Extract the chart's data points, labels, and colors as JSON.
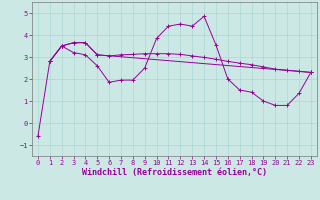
{
  "xlabel": "Windchill (Refroidissement éolien,°C)",
  "background_color": "#cce8e4",
  "line_color": "#990099",
  "xlim": [
    -0.5,
    23.5
  ],
  "ylim": [
    -1.5,
    5.5
  ],
  "yticks": [
    -1,
    0,
    1,
    2,
    3,
    4,
    5
  ],
  "xticks": [
    0,
    1,
    2,
    3,
    4,
    5,
    6,
    7,
    8,
    9,
    10,
    11,
    12,
    13,
    14,
    15,
    16,
    17,
    18,
    19,
    20,
    21,
    22,
    23
  ],
  "line1_x": [
    0,
    1,
    2,
    3,
    4,
    5,
    6,
    7,
    8,
    9,
    10,
    11,
    12,
    13,
    14,
    15,
    16,
    17,
    18,
    19,
    20,
    21,
    22,
    23
  ],
  "line1_y": [
    -0.6,
    2.8,
    3.5,
    3.2,
    3.1,
    2.6,
    1.85,
    1.95,
    1.95,
    2.5,
    3.85,
    4.4,
    4.5,
    4.4,
    4.85,
    3.55,
    2.0,
    1.5,
    1.4,
    1.0,
    0.8,
    0.8,
    1.35,
    2.3
  ],
  "line2_x": [
    1,
    2,
    3,
    4,
    5,
    6,
    7,
    8,
    9,
    10,
    11,
    12,
    13,
    14,
    15,
    16,
    17,
    18,
    19,
    20,
    21,
    22,
    23
  ],
  "line2_y": [
    2.8,
    3.5,
    3.65,
    3.65,
    3.1,
    3.05,
    3.1,
    3.12,
    3.15,
    3.15,
    3.15,
    3.12,
    3.05,
    2.98,
    2.9,
    2.8,
    2.72,
    2.65,
    2.55,
    2.45,
    2.4,
    2.35,
    2.3
  ],
  "line3_x": [
    1,
    2,
    3,
    4,
    5,
    23
  ],
  "line3_y": [
    2.8,
    3.5,
    3.65,
    3.65,
    3.1,
    2.3
  ],
  "grid_color": "#aad8d4",
  "tick_fontsize": 5.0,
  "xlabel_fontsize": 6.0
}
